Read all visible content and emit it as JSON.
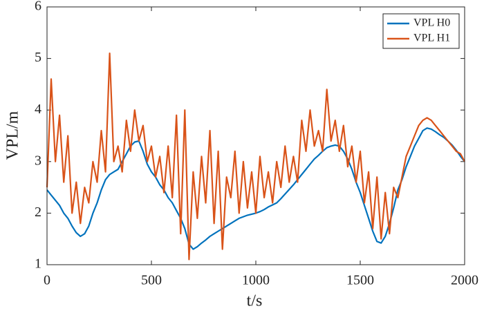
{
  "chart_data": {
    "type": "line",
    "xlabel": "t/s",
    "ylabel": "VPL/m",
    "x": [
      0,
      20,
      40,
      60,
      80,
      100,
      120,
      140,
      160,
      180,
      200,
      220,
      240,
      260,
      280,
      300,
      320,
      340,
      360,
      380,
      400,
      420,
      440,
      460,
      480,
      500,
      520,
      540,
      560,
      580,
      600,
      620,
      640,
      660,
      680,
      700,
      720,
      740,
      760,
      780,
      800,
      820,
      840,
      860,
      880,
      900,
      920,
      940,
      960,
      980,
      1000,
      1020,
      1040,
      1060,
      1080,
      1100,
      1120,
      1140,
      1160,
      1180,
      1200,
      1220,
      1240,
      1260,
      1280,
      1300,
      1320,
      1340,
      1360,
      1380,
      1400,
      1420,
      1440,
      1460,
      1480,
      1500,
      1520,
      1540,
      1560,
      1580,
      1600,
      1620,
      1640,
      1660,
      1680,
      1700,
      1720,
      1740,
      1760,
      1780,
      1800,
      1820,
      1840,
      1860,
      1880,
      1900,
      1920,
      1940,
      1960,
      1980,
      2000
    ],
    "series": [
      {
        "name": "VPL H0",
        "color": "#0072bd",
        "values": [
          2.45,
          2.35,
          2.25,
          2.15,
          2.0,
          1.9,
          1.75,
          1.62,
          1.55,
          1.6,
          1.75,
          2.0,
          2.2,
          2.45,
          2.65,
          2.75,
          2.8,
          2.85,
          3.0,
          3.15,
          3.3,
          3.38,
          3.4,
          3.2,
          2.95,
          2.8,
          2.7,
          2.55,
          2.45,
          2.3,
          2.2,
          2.05,
          1.9,
          1.7,
          1.4,
          1.3,
          1.35,
          1.42,
          1.48,
          1.55,
          1.6,
          1.65,
          1.7,
          1.75,
          1.8,
          1.85,
          1.9,
          1.93,
          1.96,
          1.98,
          2.0,
          2.03,
          2.07,
          2.12,
          2.16,
          2.2,
          2.28,
          2.37,
          2.46,
          2.55,
          2.65,
          2.75,
          2.85,
          2.95,
          3.05,
          3.12,
          3.2,
          3.27,
          3.3,
          3.32,
          3.3,
          3.2,
          3.05,
          2.85,
          2.6,
          2.4,
          2.15,
          1.9,
          1.65,
          1.45,
          1.42,
          1.55,
          1.8,
          2.1,
          2.45,
          2.65,
          2.9,
          3.1,
          3.3,
          3.45,
          3.6,
          3.65,
          3.63,
          3.58,
          3.52,
          3.47,
          3.4,
          3.32,
          3.22,
          3.1,
          3.0
        ]
      },
      {
        "name": "VPL H1",
        "color": "#d95319",
        "values": [
          2.5,
          4.6,
          3.0,
          3.9,
          2.6,
          3.5,
          2.0,
          2.6,
          1.8,
          2.5,
          2.2,
          3.0,
          2.6,
          3.6,
          2.8,
          5.1,
          3.0,
          3.3,
          2.8,
          3.8,
          3.2,
          4.0,
          3.4,
          3.7,
          3.0,
          3.3,
          2.7,
          3.1,
          2.4,
          3.3,
          2.3,
          3.9,
          1.6,
          4.0,
          1.1,
          2.8,
          1.9,
          3.1,
          2.2,
          3.6,
          1.8,
          3.2,
          1.3,
          2.7,
          2.3,
          3.2,
          2.0,
          3.0,
          2.1,
          2.8,
          2.0,
          3.1,
          2.3,
          2.8,
          2.2,
          3.0,
          2.5,
          3.3,
          2.6,
          3.1,
          2.6,
          3.8,
          3.2,
          4.0,
          3.3,
          3.6,
          3.2,
          4.4,
          3.4,
          3.8,
          3.2,
          3.7,
          2.9,
          3.3,
          2.6,
          3.2,
          2.2,
          2.8,
          1.7,
          2.7,
          1.5,
          2.4,
          1.6,
          2.5,
          2.3,
          2.7,
          3.1,
          3.3,
          3.5,
          3.7,
          3.8,
          3.85,
          3.8,
          3.7,
          3.6,
          3.5,
          3.4,
          3.3,
          3.2,
          3.15,
          3.0
        ]
      }
    ],
    "xlim": [
      0,
      2000
    ],
    "xticks": [
      0,
      500,
      1000,
      1500,
      2000
    ],
    "ylim": [
      1,
      6
    ],
    "yticks": [
      1,
      2,
      3,
      4,
      5,
      6
    ],
    "legend": "upper right"
  }
}
